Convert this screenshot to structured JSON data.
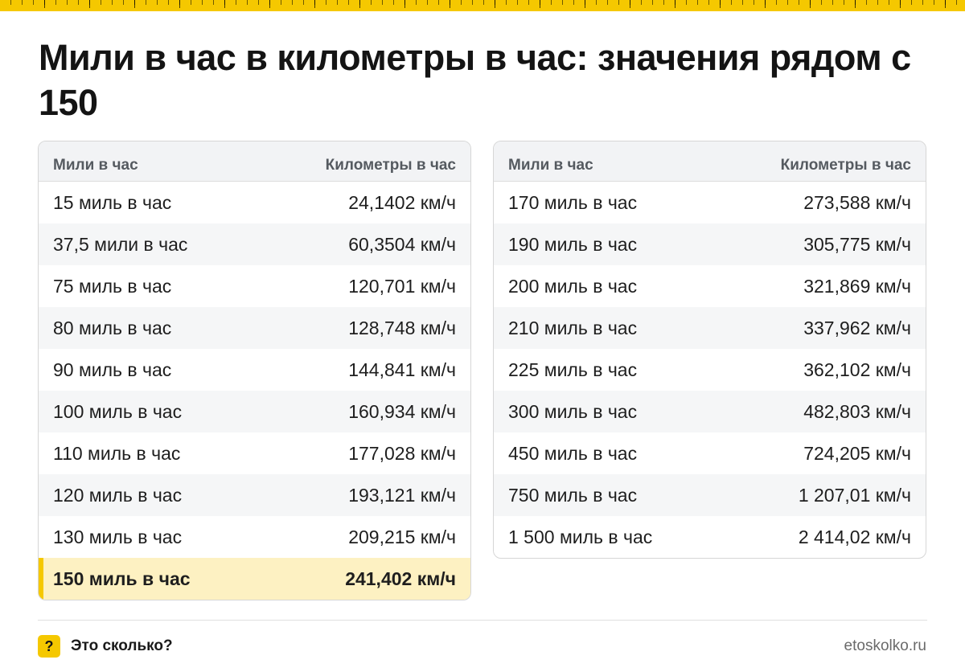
{
  "colors": {
    "accent": "#f5c800",
    "highlight_row": "#fdf1c2",
    "header_bg": "#f2f3f5"
  },
  "title": "Мили в час в километры в час: значения рядом с 150",
  "table_left": {
    "headers": {
      "col1": "Мили в час",
      "col2": "Километры в час"
    },
    "rows": [
      {
        "mph": "15 миль в час",
        "kmh": "24,1402 км/ч"
      },
      {
        "mph": "37,5 мили в час",
        "kmh": "60,3504 км/ч"
      },
      {
        "mph": "75 миль в час",
        "kmh": "120,701 км/ч"
      },
      {
        "mph": "80 миль в час",
        "kmh": "128,748 км/ч"
      },
      {
        "mph": "90 миль в час",
        "kmh": "144,841 км/ч"
      },
      {
        "mph": "100 миль в час",
        "kmh": "160,934 км/ч"
      },
      {
        "mph": "110 миль в час",
        "kmh": "177,028 км/ч"
      },
      {
        "mph": "120 миль в час",
        "kmh": "193,121 км/ч"
      },
      {
        "mph": "130 миль в час",
        "kmh": "209,215 км/ч"
      },
      {
        "mph": "150 миль в час",
        "kmh": "241,402 км/ч"
      }
    ]
  },
  "table_right": {
    "headers": {
      "col1": "Мили в час",
      "col2": "Километры в час"
    },
    "rows": [
      {
        "mph": "170 миль в час",
        "kmh": "273,588 км/ч"
      },
      {
        "mph": "190 миль в час",
        "kmh": "305,775 км/ч"
      },
      {
        "mph": "200 миль в час",
        "kmh": "321,869 км/ч"
      },
      {
        "mph": "210 миль в час",
        "kmh": "337,962 км/ч"
      },
      {
        "mph": "225 миль в час",
        "kmh": "362,102 км/ч"
      },
      {
        "mph": "300 миль в час",
        "kmh": "482,803 км/ч"
      },
      {
        "mph": "450 миль в час",
        "kmh": "724,205 км/ч"
      },
      {
        "mph": "750 миль в час",
        "kmh": "1 207,01 км/ч"
      },
      {
        "mph": "1 500 миль в час",
        "kmh": "2 414,02 км/ч"
      }
    ]
  },
  "footer": {
    "brand_icon": "?",
    "brand_icon_name": "question-mark-icon",
    "brand_name": "Это сколько?",
    "site": "etoskolko.ru"
  }
}
